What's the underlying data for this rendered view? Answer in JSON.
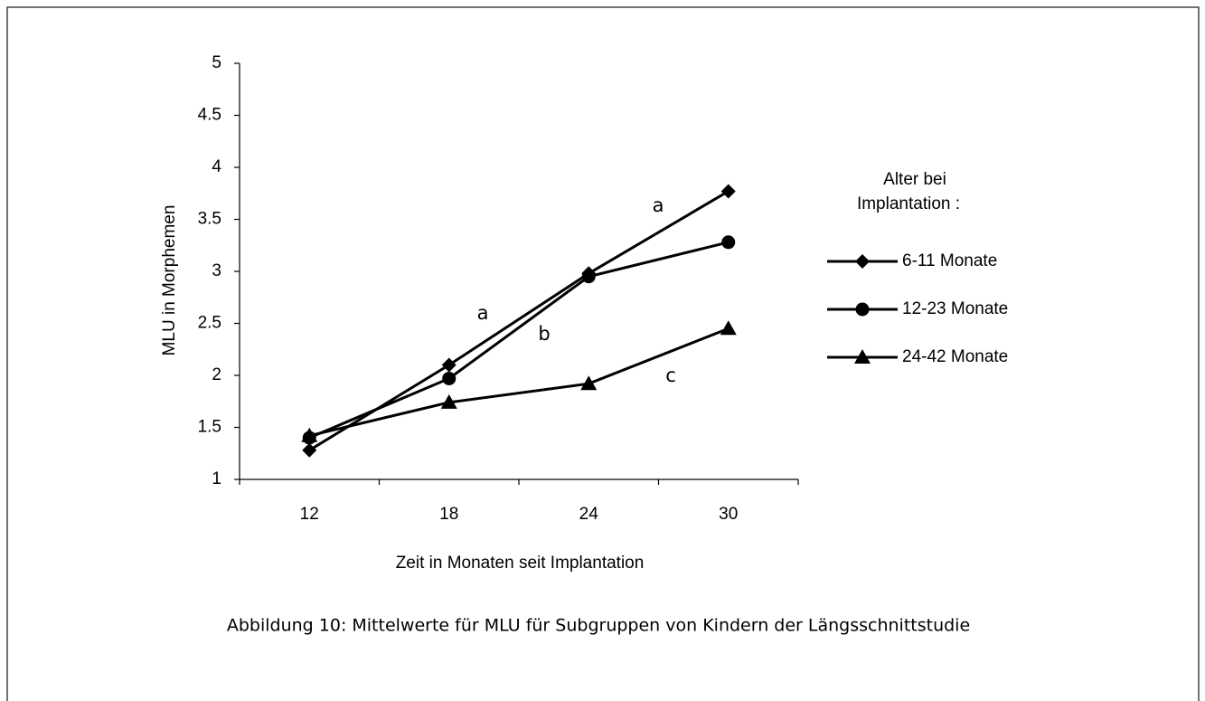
{
  "chart_data": {
    "type": "line",
    "x_label": "Zeit in Monaten seit Implantation",
    "y_label": "MLU in Morphemen",
    "categories": [
      "12",
      "18",
      "24",
      "30"
    ],
    "series": [
      {
        "name": "6-11 Monate",
        "color": "#000000",
        "marker": "diamond",
        "values": [
          1.28,
          2.1,
          2.98,
          3.77
        ]
      },
      {
        "name": "12-23 Monate",
        "color": "#000000",
        "marker": "circle",
        "values": [
          1.4,
          1.97,
          2.95,
          3.28
        ]
      },
      {
        "name": "24-42 Monate",
        "color": "#000000",
        "marker": "triangle",
        "values": [
          1.42,
          1.74,
          1.92,
          2.45
        ]
      }
    ],
    "ylim": [
      1,
      5
    ],
    "yticks": [
      1,
      1.5,
      2,
      2.5,
      3,
      3.5,
      4,
      4.5,
      5
    ],
    "legend_title": [
      "Alter bei",
      "Implantation :"
    ],
    "legend_position": "right",
    "annotations": [
      "a",
      "a",
      "b",
      "c"
    ],
    "caption": "Abbildung 10:  Mittelwerte für MLU für Subgruppen von Kindern der Längsschnittstudie"
  }
}
